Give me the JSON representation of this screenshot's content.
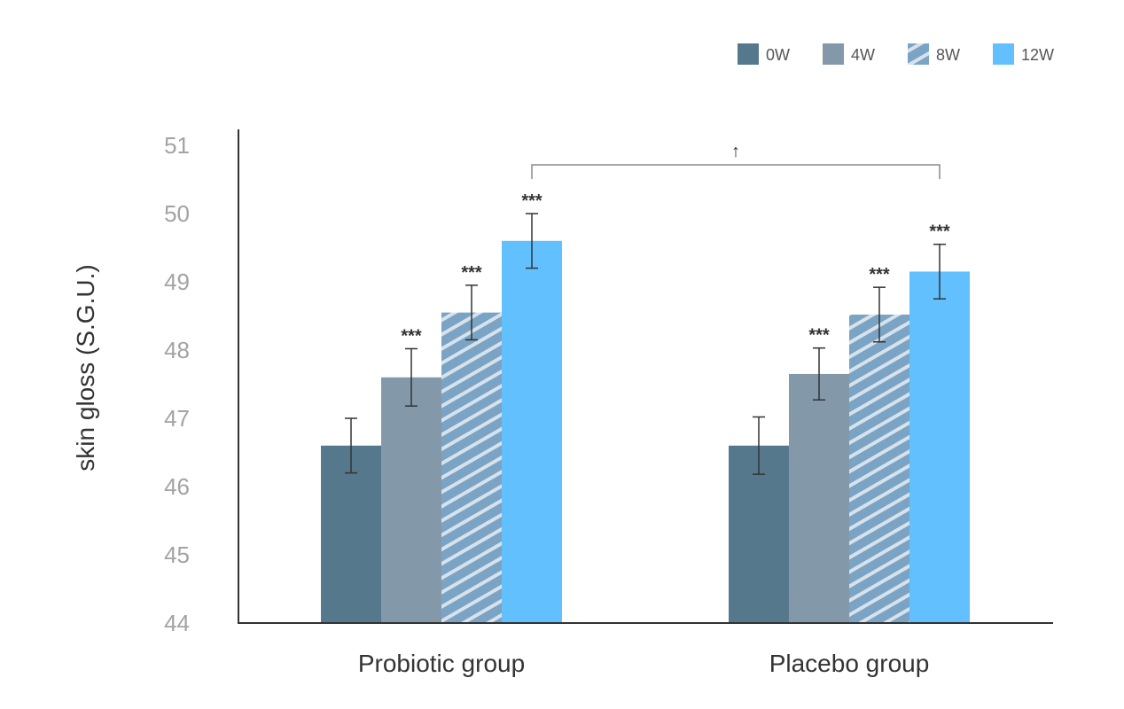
{
  "chart_data": {
    "type": "bar",
    "categories": [
      "Probiotic group",
      "Placebo group"
    ],
    "series": [
      {
        "name": "0W",
        "values": [
          46.6,
          46.6
        ],
        "errors": [
          0.4,
          0.42
        ],
        "color": "#55788d",
        "pattern": "solid"
      },
      {
        "name": "4W",
        "values": [
          47.6,
          47.65
        ],
        "errors": [
          0.42,
          0.38
        ],
        "color": "#8399aa",
        "pattern": "solid"
      },
      {
        "name": "8W",
        "values": [
          48.55,
          48.52
        ],
        "errors": [
          0.4,
          0.4
        ],
        "color": "#7aa3c4",
        "pattern": "hatch"
      },
      {
        "name": "12W",
        "values": [
          49.6,
          49.15
        ],
        "errors": [
          0.4,
          0.4
        ],
        "color": "#62c0ff",
        "pattern": "solid"
      }
    ],
    "significance": [
      [
        "",
        "***",
        "***",
        "***"
      ],
      [
        "",
        "***",
        "***",
        "***"
      ]
    ],
    "bracket_label": "↑",
    "ylabel": "skin gloss (S.G.U.)",
    "xlabel": "",
    "ylim": [
      44,
      51
    ],
    "yticks": [
      "44",
      "45",
      "46",
      "47",
      "48",
      "49",
      "50",
      "51"
    ],
    "legend_position": "top-right",
    "grid": false
  }
}
